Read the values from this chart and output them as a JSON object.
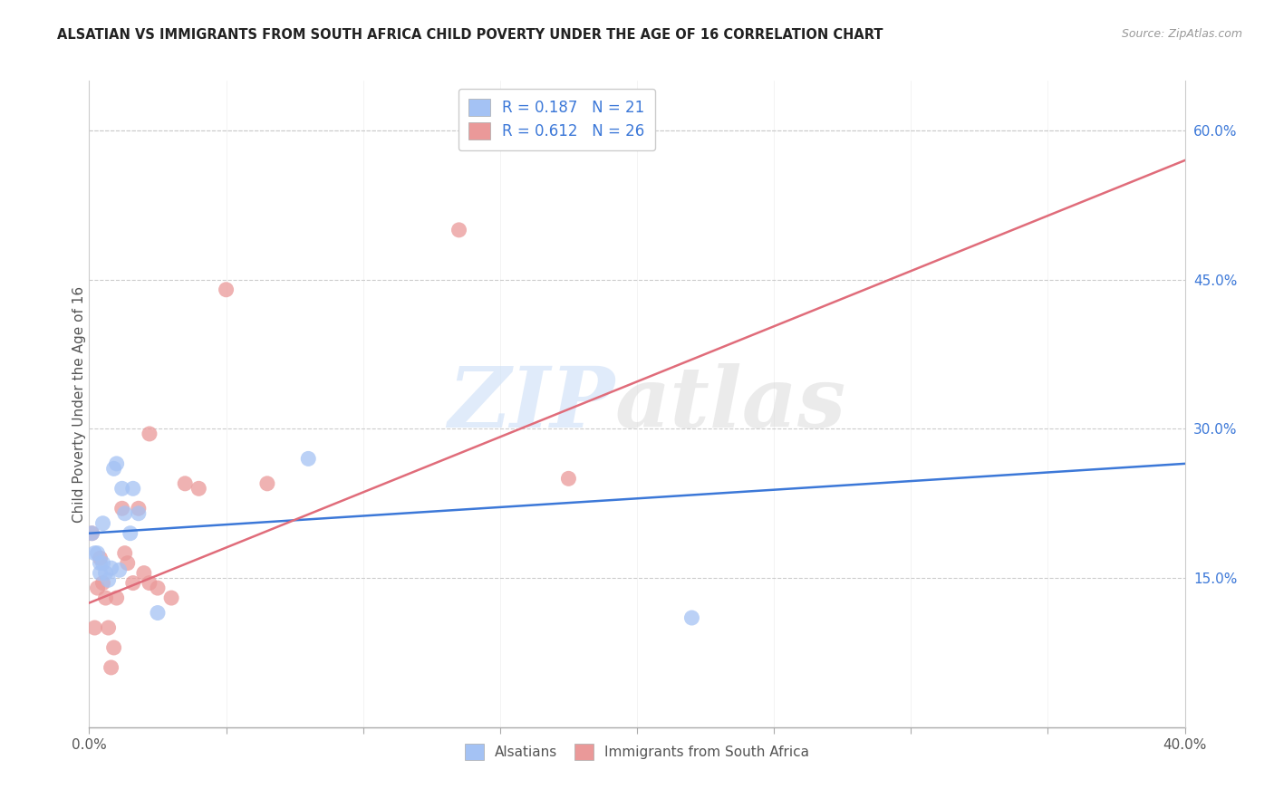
{
  "title": "ALSATIAN VS IMMIGRANTS FROM SOUTH AFRICA CHILD POVERTY UNDER THE AGE OF 16 CORRELATION CHART",
  "source": "Source: ZipAtlas.com",
  "ylabel": "Child Poverty Under the Age of 16",
  "xlabel_alsatians": "Alsatians",
  "xlabel_immigrants": "Immigrants from South Africa",
  "xlim": [
    0.0,
    0.4
  ],
  "ylim": [
    0.0,
    0.65
  ],
  "yticks_right": [
    0.15,
    0.3,
    0.45,
    0.6
  ],
  "ytick_right_labels": [
    "15.0%",
    "30.0%",
    "45.0%",
    "60.0%"
  ],
  "grid_color": "#cccccc",
  "background_color": "#ffffff",
  "watermark_zip": "ZIP",
  "watermark_atlas": "atlas",
  "blue_color": "#a4c2f4",
  "pink_color": "#ea9999",
  "blue_line_color": "#3c78d8",
  "pink_line_color": "#e06c7a",
  "legend_text_color": "#3c78d8",
  "tick_label_color": "#3c78d8",
  "R_blue": "0.187",
  "N_blue": "21",
  "R_pink": "0.612",
  "N_pink": "26",
  "alsatians_x": [
    0.001,
    0.002,
    0.003,
    0.004,
    0.004,
    0.005,
    0.005,
    0.006,
    0.007,
    0.008,
    0.009,
    0.01,
    0.011,
    0.012,
    0.013,
    0.015,
    0.016,
    0.018,
    0.025,
    0.08,
    0.22
  ],
  "alsatians_y": [
    0.195,
    0.175,
    0.175,
    0.155,
    0.165,
    0.165,
    0.205,
    0.155,
    0.148,
    0.16,
    0.26,
    0.265,
    0.158,
    0.24,
    0.215,
    0.195,
    0.24,
    0.215,
    0.115,
    0.27,
    0.11
  ],
  "immigrants_x": [
    0.001,
    0.002,
    0.003,
    0.004,
    0.005,
    0.006,
    0.007,
    0.008,
    0.009,
    0.01,
    0.012,
    0.013,
    0.014,
    0.016,
    0.018,
    0.02,
    0.022,
    0.022,
    0.025,
    0.03,
    0.035,
    0.04,
    0.05,
    0.065,
    0.135,
    0.175
  ],
  "immigrants_y": [
    0.195,
    0.1,
    0.14,
    0.17,
    0.145,
    0.13,
    0.1,
    0.06,
    0.08,
    0.13,
    0.22,
    0.175,
    0.165,
    0.145,
    0.22,
    0.155,
    0.145,
    0.295,
    0.14,
    0.13,
    0.245,
    0.24,
    0.44,
    0.245,
    0.5,
    0.25
  ],
  "blue_line_x": [
    0.0,
    0.4
  ],
  "blue_line_y": [
    0.195,
    0.265
  ],
  "pink_line_x": [
    0.0,
    0.4
  ],
  "pink_line_y": [
    0.125,
    0.57
  ]
}
